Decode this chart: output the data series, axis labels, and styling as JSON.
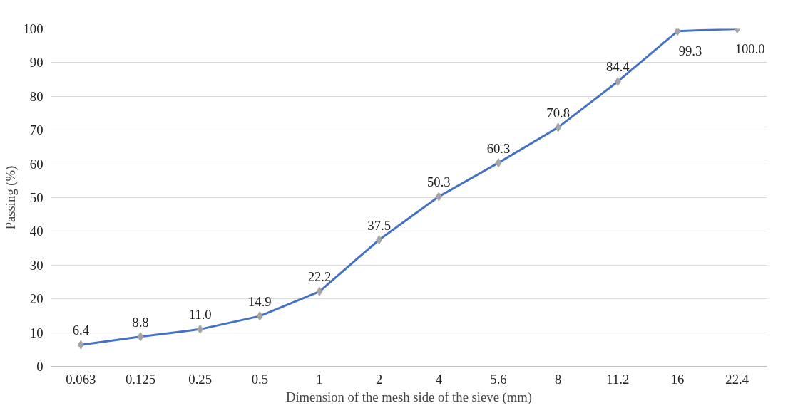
{
  "chart_data": {
    "type": "line",
    "xlabel": "Dimension of the mesh side of the sieve (mm)",
    "ylabel": "Passing (%)",
    "categories": [
      "0.063",
      "0.125",
      "0.25",
      "0.5",
      "1",
      "2",
      "4",
      "5.6",
      "8",
      "11.2",
      "16",
      "22.4"
    ],
    "series": [
      {
        "color": "#4472c4",
        "colors": [
          "#a5a5a5",
          "#a5a5a5",
          "#a5a5a5",
          "#a5a5a5",
          "#a5a5a5",
          "#a5a5a5",
          "#a5a5a5",
          "#a5a5a5",
          "#a5a5a5",
          "#a5a5a5",
          "#a5a5a5",
          "#a5a5a5"
        ],
        "values": [
          6.4,
          8.8,
          11.0,
          14.9,
          22.2,
          37.5,
          50.3,
          60.3,
          70.8,
          84.4,
          99.3,
          100.0
        ]
      }
    ],
    "value_labels": [
      "6.4",
      "8.8",
      "11.0",
      "14.9",
      "22.2",
      "37.5",
      "50.3",
      "60.3",
      "70.8",
      "84.4",
      "99.3",
      "100.0"
    ],
    "ylim": [
      0,
      100
    ],
    "yticks": [
      0,
      10,
      20,
      30,
      40,
      50,
      60,
      70,
      80,
      90,
      100
    ],
    "grid": "y",
    "marker": "diamond",
    "line_style": "solid"
  }
}
